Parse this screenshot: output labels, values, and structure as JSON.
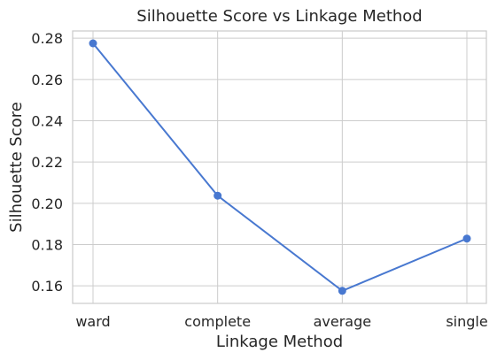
{
  "chart_data": {
    "type": "line",
    "title": "Silhouette Score vs Linkage Method",
    "xlabel": "Linkage Method",
    "ylabel": "Silhouette Score",
    "categories": [
      "ward",
      "complete",
      "average",
      "single"
    ],
    "series": [
      {
        "values": [
          0.2775,
          0.2037,
          0.1576,
          0.1829
        ],
        "color": "#4878d0",
        "marker": "circle"
      }
    ],
    "ylim": [
      0.1515,
      0.2835
    ],
    "yticks": [
      "0.16",
      "0.18",
      "0.20",
      "0.22",
      "0.24",
      "0.26",
      "0.28"
    ],
    "grid": true
  }
}
